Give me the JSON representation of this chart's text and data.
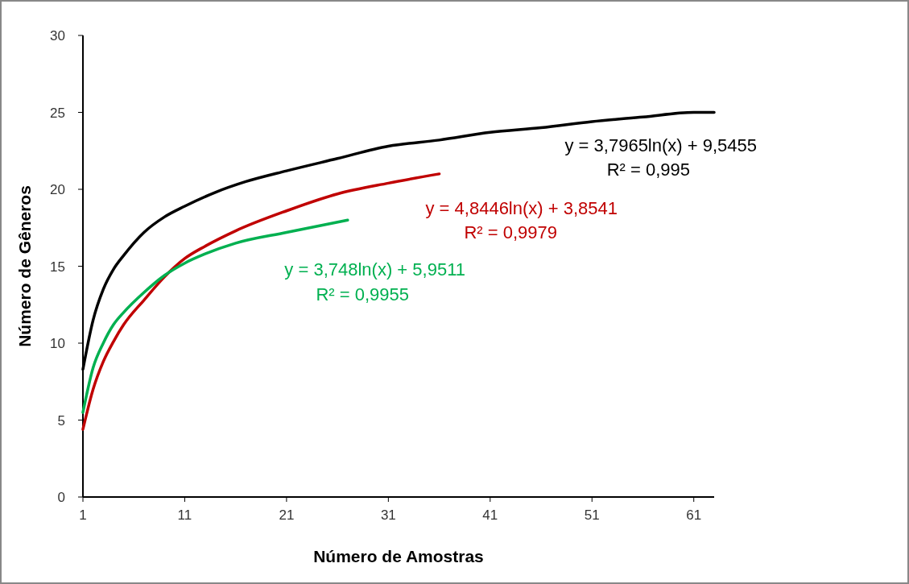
{
  "chart_data": {
    "type": "line",
    "xlabel": "Número de Amostras",
    "ylabel": "Número de Gêneros",
    "xlim": [
      1,
      63
    ],
    "xticks": [
      1,
      11,
      21,
      31,
      41,
      51,
      61
    ],
    "ylim": [
      0,
      30
    ],
    "yticks": [
      0,
      5,
      10,
      15,
      20,
      25,
      30
    ],
    "grid": false,
    "marker": "none",
    "line_style": "solid",
    "series": [
      {
        "color": "#000000",
        "x": [
          1,
          2,
          3,
          4,
          5,
          7,
          9,
          11,
          14,
          17,
          21,
          26,
          31,
          36,
          41,
          46,
          51,
          56,
          61,
          63
        ],
        "values": [
          8.3,
          11.5,
          13.5,
          14.8,
          15.7,
          17.2,
          18.2,
          18.9,
          19.8,
          20.5,
          21.2,
          22.0,
          22.8,
          23.2,
          23.7,
          24.0,
          24.4,
          24.7,
          25.0,
          25.0
        ]
      },
      {
        "color": "#c00000",
        "x": [
          1,
          2,
          3,
          4,
          5,
          7,
          9,
          11,
          13,
          16,
          21,
          26,
          31,
          36
        ],
        "values": [
          4.4,
          7.0,
          8.8,
          10.1,
          11.2,
          12.8,
          14.3,
          15.5,
          16.3,
          17.3,
          18.6,
          19.7,
          20.4,
          21.0
        ]
      },
      {
        "color": "#00b050",
        "x": [
          1,
          2,
          3,
          4,
          5,
          7,
          9,
          11,
          13,
          16,
          21,
          27
        ],
        "values": [
          5.5,
          8.4,
          10.0,
          11.2,
          12.0,
          13.3,
          14.4,
          15.2,
          15.8,
          16.5,
          17.2,
          18.0
        ]
      }
    ],
    "annotations": [
      "y = 3,7965ln(x) + 9,5455",
      "R² = 0,995",
      "y = 4,8446ln(x) + 3,8541",
      "R² = 0,9979",
      "y = 3,748ln(x) + 5,9511",
      "R² = 0,9955"
    ]
  }
}
